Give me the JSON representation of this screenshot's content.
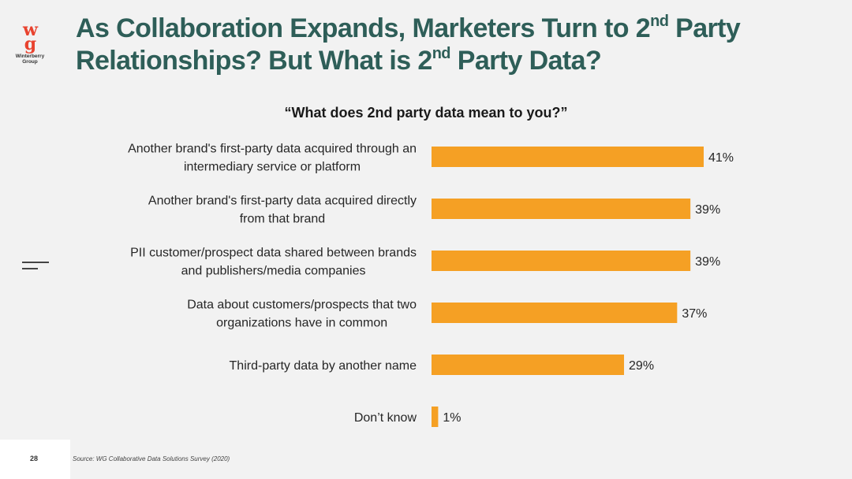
{
  "logo": {
    "mark_top": "w",
    "mark_bottom": "g",
    "name_line1": "Winterberry",
    "name_line2": "Group"
  },
  "header": {
    "title_part1": "As Collaboration Expands, Marketers Turn to 2",
    "title_sup1": "nd",
    "title_part2": " Party Relationships? But What is 2",
    "title_sup2": "nd",
    "title_part3": " Party Data?"
  },
  "chart_data": {
    "type": "bar",
    "orientation": "horizontal",
    "title": "“What does 2nd party data mean to you?”",
    "categories": [
      [
        "Another brand's first-party data acquired through an",
        "intermediary service or platform"
      ],
      [
        "Another brand's first-party data acquired directly",
        "from that brand"
      ],
      [
        "PII customer/prospect data shared between brands",
        "and publishers/media companies"
      ],
      [
        "Data about customers/prospects that two",
        "organizations have in common"
      ],
      [
        "Third-party data by another name"
      ],
      [
        "Don’t know"
      ]
    ],
    "values": [
      41,
      39,
      39,
      37,
      29,
      1
    ],
    "value_labels": [
      "41%",
      "39%",
      "39%",
      "37%",
      "29%",
      "1%"
    ],
    "unit": "%",
    "xlim": [
      0,
      41
    ],
    "grid": false,
    "legend": "none",
    "bar_color": "#f5a024"
  },
  "footer": {
    "page_number": "28",
    "source": "Source: WG Collaborative Data Solutions Survey (2020)"
  }
}
